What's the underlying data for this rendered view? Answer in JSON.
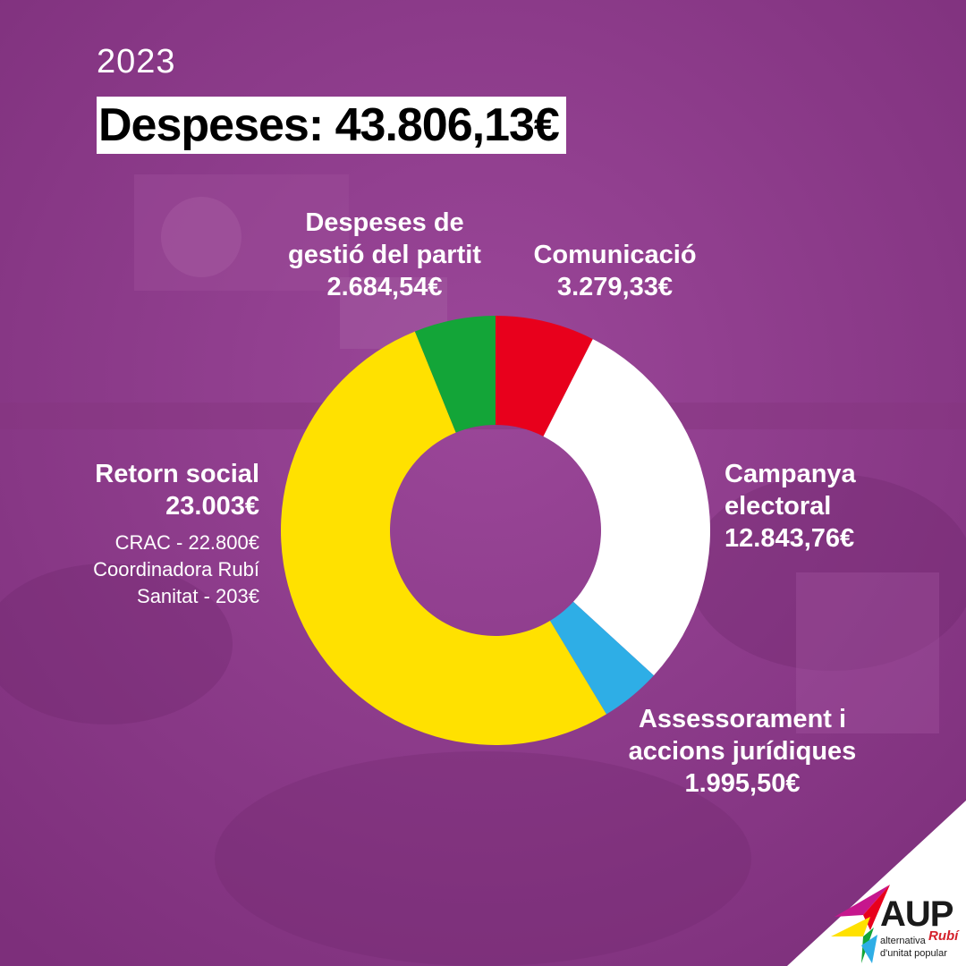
{
  "header": {
    "year": "2023",
    "title": "Despeses: 43.806,13€"
  },
  "colors": {
    "background": "#8e3a8c",
    "comunicacio": "#e8001c",
    "campanya": "#ffffff",
    "assessorament": "#2eaee6",
    "retorn": "#ffe100",
    "gestio": "#13a538"
  },
  "labels": {
    "gestio": {
      "line1": "Despeses de",
      "line2": "gestió del partit",
      "value": "2.684,54€"
    },
    "comunicacio": {
      "line1": "Comunicació",
      "value": "3.279,33€"
    },
    "campanya": {
      "line1": "Campanya",
      "line2": "electoral",
      "value": "12.843,76€"
    },
    "assessorament": {
      "line1": "Assessorament i",
      "line2": "accions jurídiques",
      "value": "1.995,50€"
    },
    "retorn": {
      "line1": "Retorn social",
      "value": "23.003€"
    },
    "retorn_note": {
      "line1": "CRAC - 22.800€",
      "line2": "Coordinadora Rubí",
      "line3": "Sanitat - 203€"
    }
  },
  "logo": {
    "name": "AUP",
    "sub1": "alternativa",
    "sub2": "d'unitat popular",
    "place": "Rubí"
  },
  "chart_data": {
    "type": "pie",
    "donut": true,
    "title": "Despeses: 43.806,13€",
    "categories": [
      "Comunicació",
      "Campanya electoral",
      "Assessorament i accions jurídiques",
      "Retorn social",
      "Despeses de gestió del partit"
    ],
    "values": [
      3279.33,
      12843.76,
      1995.5,
      23003.0,
      2684.54
    ],
    "colors": [
      "#e8001c",
      "#ffffff",
      "#2eaee6",
      "#ffe100",
      "#13a538"
    ],
    "start": "top",
    "direction": "clockwise",
    "unit": "€"
  }
}
